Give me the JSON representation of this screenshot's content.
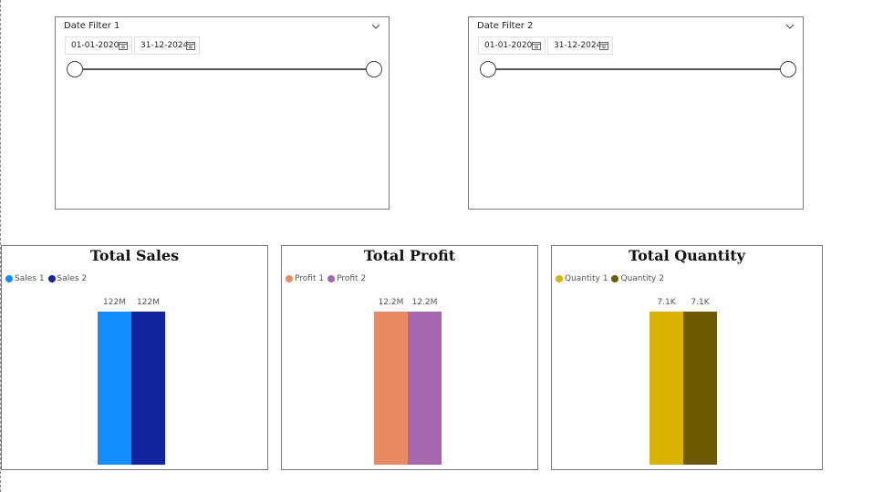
{
  "slicers": [
    {
      "title": "Date Filter 1",
      "start": "01-01-2020",
      "end": "31-12-2024",
      "range_fraction": [
        0,
        1
      ]
    },
    {
      "title": "Date Filter 2",
      "start": "01-01-2020",
      "end": "31-12-2024",
      "range_fraction": [
        0,
        1
      ]
    }
  ],
  "chart_data": [
    {
      "type": "bar",
      "title": "Total Sales",
      "series": [
        {
          "name": "Sales 1",
          "value": 122,
          "label": "122M",
          "color": "#118DFF"
        },
        {
          "name": "Sales 2",
          "value": 122,
          "label": "122M",
          "color": "#12239E"
        }
      ],
      "legend": "top-left",
      "ylim": [
        0,
        122
      ]
    },
    {
      "type": "bar",
      "title": "Total Profit",
      "series": [
        {
          "name": "Profit 1",
          "value": 12.2,
          "label": "12.2M",
          "color": "#E98B62"
        },
        {
          "name": "Profit 2",
          "value": 12.2,
          "label": "12.2M",
          "color": "#A666B0"
        }
      ],
      "legend": "top-left",
      "ylim": [
        0,
        12.2
      ]
    },
    {
      "type": "bar",
      "title": "Total Quantity",
      "series": [
        {
          "name": "Quantity 1",
          "value": 7.1,
          "label": "7.1K",
          "color": "#D9B300"
        },
        {
          "name": "Quantity 2",
          "value": 7.1,
          "label": "7.1K",
          "color": "#6B5A00"
        }
      ],
      "legend": "top-left",
      "ylim": [
        0,
        7.1
      ]
    }
  ]
}
